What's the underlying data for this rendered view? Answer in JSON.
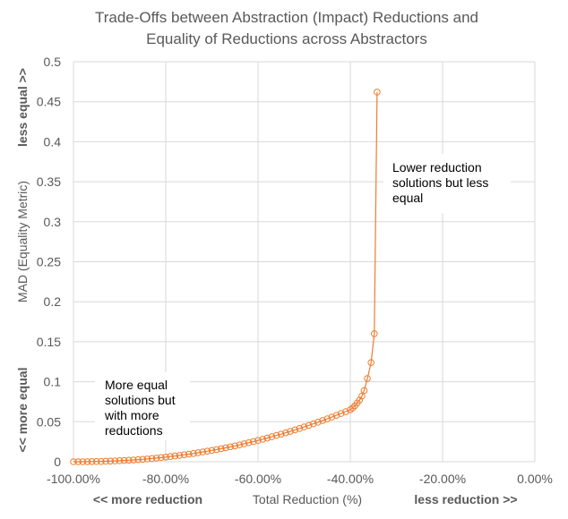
{
  "chart_data": {
    "type": "scatter",
    "title_lines": [
      "Trade-Offs between Abstraction (Impact) Reductions and",
      "Equality of Reductions across Abstractors"
    ],
    "xlabel": "Total Reduction (%)",
    "ylabel": "MAD (Equality Metric)",
    "x_extra_labels": {
      "left": "<< more reduction",
      "right": "less reduction >>"
    },
    "y_extra_labels": {
      "top": "less equal >>",
      "bottom": "<< more equal"
    },
    "xlim": [
      -100,
      0
    ],
    "ylim": [
      0,
      0.5
    ],
    "x_ticks": [
      "-100.00%",
      "-80.00%",
      "-60.00%",
      "-40.00%",
      "-20.00%",
      "0.00%"
    ],
    "y_ticks": [
      "0",
      "0.05",
      "0.1",
      "0.15",
      "0.2",
      "0.25",
      "0.3",
      "0.35",
      "0.4",
      "0.45",
      "0.5"
    ],
    "grid": true,
    "series_color": "#ED7D31",
    "marker": "hollow-circle",
    "line": true,
    "points": [
      [
        -100,
        0
      ],
      [
        -99,
        0
      ],
      [
        -98,
        0
      ],
      [
        -97,
        0.0001
      ],
      [
        -96,
        0.0002
      ],
      [
        -95,
        0.0003
      ],
      [
        -94,
        0.0004
      ],
      [
        -93,
        0.0006
      ],
      [
        -92,
        0.0008
      ],
      [
        -91,
        0.001
      ],
      [
        -90,
        0.0013
      ],
      [
        -89,
        0.0016
      ],
      [
        -88,
        0.0019
      ],
      [
        -87,
        0.0022
      ],
      [
        -86,
        0.0026
      ],
      [
        -85,
        0.003
      ],
      [
        -84,
        0.0035
      ],
      [
        -83,
        0.004
      ],
      [
        -82,
        0.0046
      ],
      [
        -81,
        0.0052
      ],
      [
        -80,
        0.0058
      ],
      [
        -79,
        0.0065
      ],
      [
        -78,
        0.0072
      ],
      [
        -77,
        0.0079
      ],
      [
        -76,
        0.0087
      ],
      [
        -75,
        0.0095
      ],
      [
        -74,
        0.0103
      ],
      [
        -73,
        0.0112
      ],
      [
        -72,
        0.0122
      ],
      [
        -71,
        0.0132
      ],
      [
        -70,
        0.0142
      ],
      [
        -69,
        0.0152
      ],
      [
        -68,
        0.0163
      ],
      [
        -67,
        0.0174
      ],
      [
        -66,
        0.0186
      ],
      [
        -65,
        0.0198
      ],
      [
        -64,
        0.0211
      ],
      [
        -63,
        0.0224
      ],
      [
        -62,
        0.0238
      ],
      [
        -61,
        0.0252
      ],
      [
        -60,
        0.0266
      ],
      [
        -59,
        0.0281
      ],
      [
        -58,
        0.0296
      ],
      [
        -57,
        0.0312
      ],
      [
        -56,
        0.0329
      ],
      [
        -55,
        0.0345
      ],
      [
        -54,
        0.0362
      ],
      [
        -53,
        0.038
      ],
      [
        -52,
        0.0398
      ],
      [
        -51,
        0.0416
      ],
      [
        -50,
        0.0435
      ],
      [
        -49,
        0.0454
      ],
      [
        -48,
        0.0474
      ],
      [
        -47,
        0.0494
      ],
      [
        -46,
        0.0515
      ],
      [
        -45,
        0.0536
      ],
      [
        -44,
        0.0558
      ],
      [
        -43,
        0.058
      ],
      [
        -42,
        0.0603
      ],
      [
        -41,
        0.0626
      ],
      [
        -40,
        0.065
      ],
      [
        -39.5,
        0.0672
      ],
      [
        -39,
        0.07
      ],
      [
        -38.5,
        0.0735
      ],
      [
        -38,
        0.077
      ],
      [
        -37.5,
        0.082
      ],
      [
        -37,
        0.089
      ],
      [
        -36.3,
        0.104
      ],
      [
        -35.5,
        0.124
      ],
      [
        -34.8,
        0.16
      ],
      [
        -34.2,
        0.462
      ]
    ],
    "annotations": [
      {
        "lines": [
          "Lower reduction",
          "solutions but less",
          "equal"
        ]
      },
      {
        "lines": [
          "More equal",
          "solutions but",
          "with more",
          "reductions"
        ]
      }
    ]
  }
}
